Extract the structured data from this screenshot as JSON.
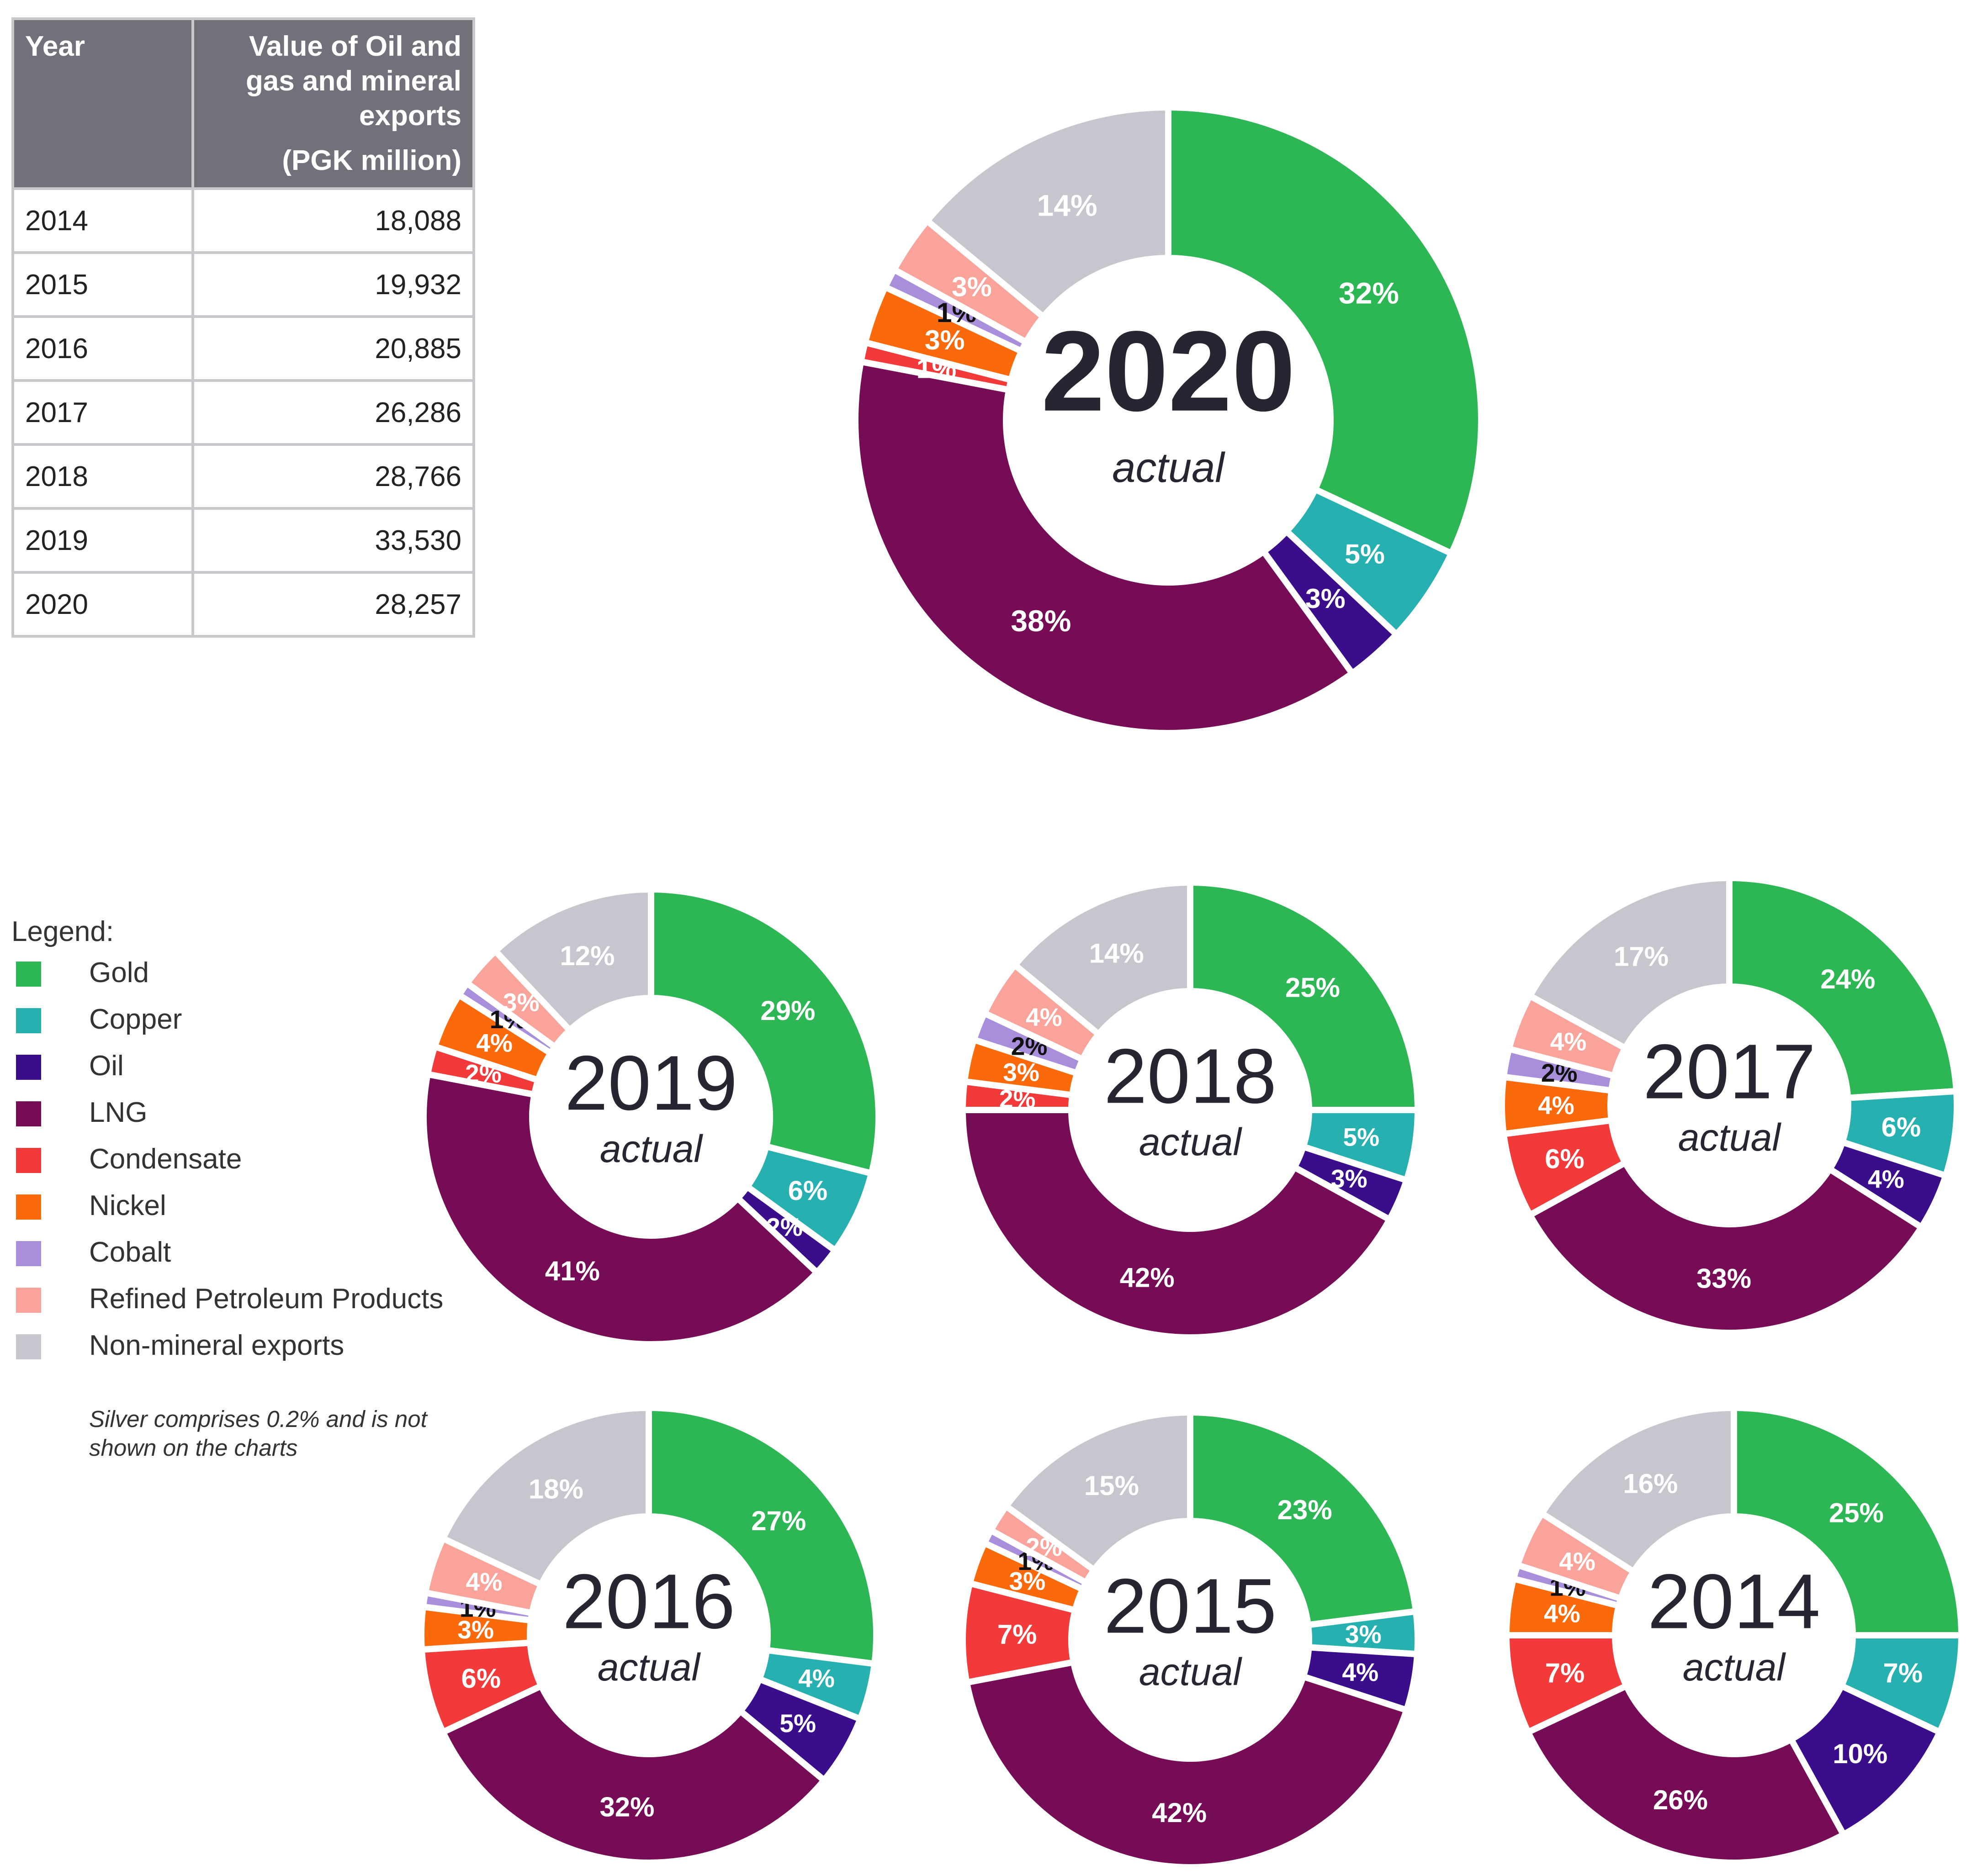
{
  "table": {
    "header_year": "Year",
    "header_value": "Value of Oil and gas and mineral exports",
    "header_unit": "(PGK million)",
    "rows": [
      {
        "year": "2014",
        "value": "18,088"
      },
      {
        "year": "2015",
        "value": "19,932"
      },
      {
        "year": "2016",
        "value": "20,885"
      },
      {
        "year": "2017",
        "value": "26,286"
      },
      {
        "year": "2018",
        "value": "28,766"
      },
      {
        "year": "2019",
        "value": "33,530"
      },
      {
        "year": "2020",
        "value": "28,257"
      }
    ]
  },
  "legend": {
    "title": "Legend:",
    "items": [
      {
        "label": "Gold",
        "color": "#2db654"
      },
      {
        "label": "Copper",
        "color": "#26b0b0"
      },
      {
        "label": "Oil",
        "color": "#3a0d8a"
      },
      {
        "label": "LNG",
        "color": "#760c55"
      },
      {
        "label": "Condensate",
        "color": "#f23a3a"
      },
      {
        "label": "Nickel",
        "color": "#fa6a0a"
      },
      {
        "label": "Cobalt",
        "color": "#a98fdb"
      },
      {
        "label": "Refined Petroleum Products",
        "color": "#f9a39a"
      },
      {
        "label": "Non-mineral exports",
        "color": "#c6c6ce"
      }
    ],
    "footnote": "Silver comprises 0.2% and is not shown on the charts"
  },
  "subtitle": "actual",
  "chart_data": [
    {
      "type": "pie",
      "title": "2020",
      "categories": [
        "Gold",
        "Copper",
        "Oil",
        "LNG",
        "Condensate",
        "Nickel",
        "Cobalt",
        "Refined Petroleum Products",
        "Non-mineral exports"
      ],
      "values": [
        32,
        5,
        3,
        38,
        1,
        3,
        1,
        3,
        14
      ],
      "labels": [
        "32%",
        "5%",
        "3%",
        "38%",
        "1%",
        "3%",
        "1%",
        "3%",
        "14%"
      ]
    },
    {
      "type": "pie",
      "title": "2019",
      "categories": [
        "Gold",
        "Copper",
        "Oil",
        "LNG",
        "Condensate",
        "Nickel",
        "Cobalt",
        "Refined Petroleum Products",
        "Non-mineral exports"
      ],
      "values": [
        29,
        6,
        2,
        41,
        2,
        4,
        1,
        3,
        12
      ],
      "labels": [
        "29%",
        "6%",
        "2%",
        "41%",
        "2%",
        "4%",
        "1%",
        "3%",
        "12%"
      ]
    },
    {
      "type": "pie",
      "title": "2018",
      "categories": [
        "Gold",
        "Copper",
        "Oil",
        "LNG",
        "Condensate",
        "Nickel",
        "Cobalt",
        "Refined Petroleum Products",
        "Non-mineral exports"
      ],
      "values": [
        25,
        5,
        3,
        42,
        2,
        3,
        2,
        4,
        14
      ],
      "labels": [
        "25%",
        "5%",
        "3%",
        "42%",
        "2%",
        "3%",
        "2%",
        "4%",
        "14%"
      ]
    },
    {
      "type": "pie",
      "title": "2017",
      "categories": [
        "Gold",
        "Copper",
        "Oil",
        "LNG",
        "Condensate",
        "Nickel",
        "Cobalt",
        "Refined Petroleum Products",
        "Non-mineral exports"
      ],
      "values": [
        24,
        6,
        4,
        33,
        6,
        4,
        2,
        4,
        17
      ],
      "labels": [
        "24%",
        "6%",
        "4%",
        "33%",
        "6%",
        "4%",
        "2%",
        "4%",
        "17%"
      ]
    },
    {
      "type": "pie",
      "title": "2016",
      "categories": [
        "Gold",
        "Copper",
        "Oil",
        "LNG",
        "Condensate",
        "Nickel",
        "Cobalt",
        "Refined Petroleum Products",
        "Non-mineral exports"
      ],
      "values": [
        27,
        4,
        5,
        32,
        6,
        3,
        1,
        4,
        18
      ],
      "labels": [
        "27%",
        "4%",
        "5%",
        "32%",
        "6%",
        "3%",
        "1%",
        "4%",
        "18%"
      ]
    },
    {
      "type": "pie",
      "title": "2015",
      "categories": [
        "Gold",
        "Copper",
        "Oil",
        "LNG",
        "Condensate",
        "Nickel",
        "Cobalt",
        "Refined Petroleum Products",
        "Non-mineral exports"
      ],
      "values": [
        23,
        3,
        4,
        42,
        7,
        3,
        1,
        2,
        15
      ],
      "labels": [
        "23%",
        "3%",
        "4%",
        "42%",
        "7%",
        "3%",
        "1%",
        "2%",
        "15%"
      ]
    },
    {
      "type": "pie",
      "title": "2014",
      "categories": [
        "Gold",
        "Copper",
        "Oil",
        "LNG",
        "Condensate",
        "Nickel",
        "Cobalt",
        "Refined Petroleum Products",
        "Non-mineral exports"
      ],
      "values": [
        25,
        7,
        10,
        26,
        7,
        4,
        1,
        4,
        16
      ],
      "labels": [
        "25%",
        "7%",
        "10%",
        "26%",
        "7%",
        "4%",
        "1%",
        "4%",
        "16%"
      ]
    }
  ]
}
